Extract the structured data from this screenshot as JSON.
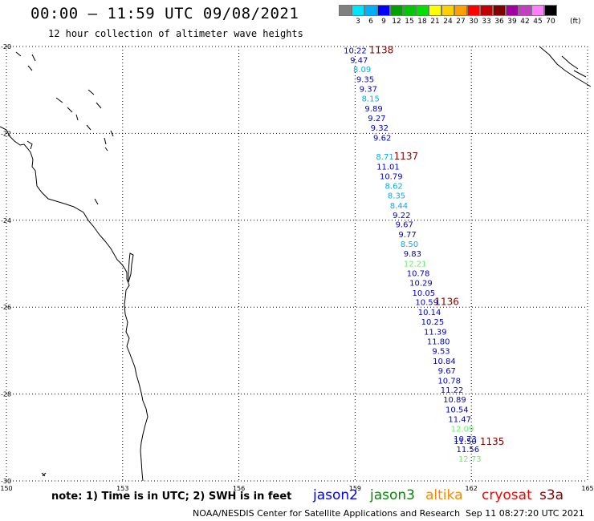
{
  "header": {
    "title": "00:00 – 11:59 UTC 09/08/2021",
    "subtitle": "12 hour collection of altimeter wave heights"
  },
  "colorbar": {
    "unit": "(ft)",
    "colors": [
      "#808080",
      "#00e5ff",
      "#00b0ff",
      "#0000ff",
      "#00a000",
      "#00c800",
      "#00e000",
      "#ffff00",
      "#ffd000",
      "#ffa000",
      "#ff0000",
      "#c00000",
      "#800000",
      "#a000a0",
      "#c040c0",
      "#ff80ff",
      "#000000"
    ],
    "labels": [
      "3",
      "6",
      "9",
      "12",
      "15",
      "18",
      "21",
      "24",
      "27",
      "30",
      "33",
      "36",
      "39",
      "42",
      "45",
      "70"
    ]
  },
  "map": {
    "lon_ticks": [
      "150",
      "153",
      "156",
      "159",
      "162",
      "165"
    ],
    "lat_ticks": [
      "-20",
      "-22",
      "-24",
      "-26",
      "-28",
      "-30"
    ]
  },
  "chart_data": {
    "type": "scatter",
    "xlim": [
      150,
      165
    ],
    "ylim": [
      -30,
      -20
    ],
    "x_ticks": [
      150,
      153,
      156,
      159,
      162,
      165
    ],
    "y_ticks": [
      -20,
      -22,
      -24,
      -26,
      -28,
      -30
    ],
    "grid": true,
    "points": [
      {
        "lon": 159.0,
        "lat": -20.08,
        "v": "10.22",
        "c": "#0000cc"
      },
      {
        "lon": 159.1,
        "lat": -20.3,
        "v": "9.47",
        "c": "#0000cc"
      },
      {
        "lon": 159.18,
        "lat": -20.52,
        "v": "8.09",
        "c": "#00aaff"
      },
      {
        "lon": 159.26,
        "lat": -20.75,
        "v": "9.35",
        "c": "#0000cc"
      },
      {
        "lon": 159.34,
        "lat": -20.97,
        "v": "9.37",
        "c": "#0000cc"
      },
      {
        "lon": 159.4,
        "lat": -21.19,
        "v": "8.15",
        "c": "#00aaff"
      },
      {
        "lon": 159.48,
        "lat": -21.42,
        "v": "9.89",
        "c": "#0000cc"
      },
      {
        "lon": 159.56,
        "lat": -21.64,
        "v": "9.27",
        "c": "#0000cc"
      },
      {
        "lon": 159.63,
        "lat": -21.86,
        "v": "9.32",
        "c": "#0000cc"
      },
      {
        "lon": 159.7,
        "lat": -22.09,
        "v": "9.62",
        "c": "#0000cc"
      },
      {
        "lon": 159.77,
        "lat": -22.53,
        "v": "8.71",
        "c": "#00aaff"
      },
      {
        "lon": 159.85,
        "lat": -22.76,
        "v": "11.01",
        "c": "#0000cc"
      },
      {
        "lon": 159.93,
        "lat": -22.98,
        "v": "10.79",
        "c": "#0000cc"
      },
      {
        "lon": 160.0,
        "lat": -23.2,
        "v": "8.62",
        "c": "#00aaff"
      },
      {
        "lon": 160.07,
        "lat": -23.42,
        "v": "8.35",
        "c": "#00aaff"
      },
      {
        "lon": 160.13,
        "lat": -23.65,
        "v": "8.44",
        "c": "#00aaff"
      },
      {
        "lon": 160.2,
        "lat": -23.87,
        "v": "9.22",
        "c": "#0000cc"
      },
      {
        "lon": 160.27,
        "lat": -24.09,
        "v": "9.67",
        "c": "#0000cc"
      },
      {
        "lon": 160.35,
        "lat": -24.32,
        "v": "9.77",
        "c": "#0000cc"
      },
      {
        "lon": 160.4,
        "lat": -24.54,
        "v": "8.50",
        "c": "#00aaff"
      },
      {
        "lon": 160.48,
        "lat": -24.76,
        "v": "9.83",
        "c": "#0000cc"
      },
      {
        "lon": 160.55,
        "lat": -24.99,
        "v": "12.21",
        "c": "#66ee66"
      },
      {
        "lon": 160.63,
        "lat": -25.21,
        "v": "10.78",
        "c": "#0000cc"
      },
      {
        "lon": 160.7,
        "lat": -25.43,
        "v": "10.29",
        "c": "#0000cc"
      },
      {
        "lon": 160.77,
        "lat": -25.66,
        "v": "10.05",
        "c": "#0000cc"
      },
      {
        "lon": 160.85,
        "lat": -25.88,
        "v": "10.59",
        "c": "#0000cc"
      },
      {
        "lon": 160.92,
        "lat": -26.11,
        "v": "10.14",
        "c": "#0000cc"
      },
      {
        "lon": 161.0,
        "lat": -26.33,
        "v": "10.25",
        "c": "#0000cc"
      },
      {
        "lon": 161.07,
        "lat": -26.56,
        "v": "11.39",
        "c": "#0000cc"
      },
      {
        "lon": 161.15,
        "lat": -26.78,
        "v": "11.80",
        "c": "#0000cc"
      },
      {
        "lon": 161.22,
        "lat": -27.0,
        "v": "9.53",
        "c": "#0000cc"
      },
      {
        "lon": 161.3,
        "lat": -27.23,
        "v": "10.84",
        "c": "#0000cc"
      },
      {
        "lon": 161.37,
        "lat": -27.45,
        "v": "9.67",
        "c": "#0000cc"
      },
      {
        "lon": 161.43,
        "lat": -27.68,
        "v": "10.78",
        "c": "#0000cc"
      },
      {
        "lon": 161.5,
        "lat": -27.9,
        "v": "11.22",
        "c": "#0000cc"
      },
      {
        "lon": 161.57,
        "lat": -28.12,
        "v": "10.89",
        "c": "#0000cc"
      },
      {
        "lon": 161.63,
        "lat": -28.35,
        "v": "10.54",
        "c": "#0000cc"
      },
      {
        "lon": 161.7,
        "lat": -28.57,
        "v": "11.47",
        "c": "#0000cc"
      },
      {
        "lon": 161.77,
        "lat": -28.79,
        "v": "12.09",
        "c": "#66ee66"
      },
      {
        "lon": 161.84,
        "lat": -29.02,
        "v": "10.73",
        "c": "#0000cc"
      },
      {
        "lon": 161.84,
        "lat": -29.08,
        "v": "11.50",
        "c": "#0000cc"
      },
      {
        "lon": 161.91,
        "lat": -29.26,
        "v": "11.56",
        "c": "#0000cc"
      },
      {
        "lon": 161.96,
        "lat": -29.48,
        "v": "12.73",
        "c": "#66ee66"
      }
    ],
    "annotations": [
      {
        "lon": 159.36,
        "lat": -20.08,
        "text": "1138",
        "c": "#8b0000"
      },
      {
        "lon": 160.0,
        "lat": -22.53,
        "text": "1137",
        "c": "#8b0000"
      },
      {
        "lon": 161.05,
        "lat": -25.88,
        "text": "1136",
        "c": "#8b0000"
      },
      {
        "lon": 162.22,
        "lat": -29.1,
        "text": "1135",
        "c": "#8b0000"
      }
    ]
  },
  "footer": {
    "note": "note: 1) Time is in UTC; 2) SWH is in feet",
    "satellites": [
      {
        "name": "jason2",
        "color": "#0000ff"
      },
      {
        "name": "jason3",
        "color": "#008800"
      },
      {
        "name": "altika",
        "color": "#ff8800"
      },
      {
        "name": "cryosat",
        "color": "#ff0000"
      },
      {
        "name": "s3a",
        "color": "#8b0000"
      }
    ],
    "credit": "NOAA/NESDIS Center for Satellite Applications and Research",
    "timestamp": "Sep 11 08:27:20 UTC 2021"
  }
}
